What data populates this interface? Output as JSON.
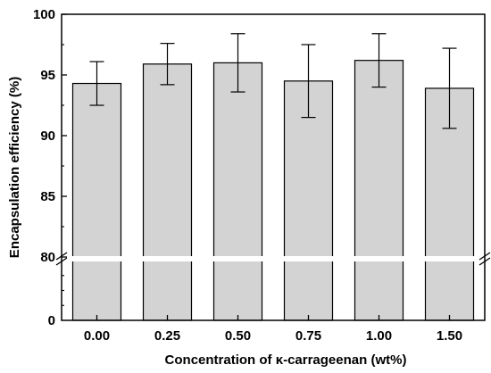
{
  "chart_data": {
    "type": "bar",
    "xlabel": "Concentration of κ-carrageenan (wt%)",
    "ylabel": "Encapsulation efficiency (%)",
    "categories": [
      "0.00",
      "0.25",
      "0.50",
      "0.75",
      "1.00",
      "1.50"
    ],
    "values": [
      94.3,
      95.9,
      96.0,
      94.5,
      96.2,
      93.9
    ],
    "error": [
      1.8,
      1.7,
      2.4,
      3.0,
      2.2,
      3.3
    ],
    "y_axis_break": {
      "lower_segment": [
        0,
        80
      ],
      "upper_segment": [
        80,
        100
      ]
    },
    "yticks_lower": [
      "0"
    ],
    "yticks_upper": [
      "80",
      "85",
      "90",
      "95",
      "100"
    ],
    "ytick_values_upper": [
      80,
      85,
      90,
      95,
      100
    ],
    "grid": false,
    "legend": "none",
    "bar_color": "#d3d3d3",
    "edge_color": "#000000"
  }
}
